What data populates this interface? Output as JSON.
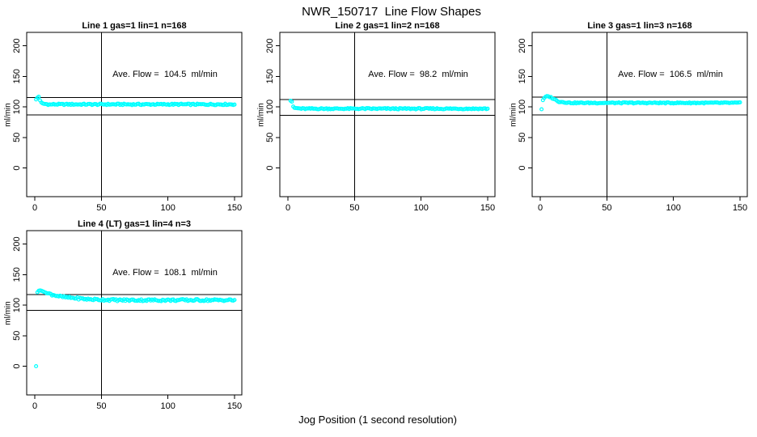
{
  "title": "NWR_150717  Line Flow Shapes",
  "xlabel": "Jog Position (1 second resolution)",
  "colors": {
    "point": "#00ffff",
    "axis": "#000000",
    "background": "#ffffff"
  },
  "chart_data": [
    {
      "type": "scatter",
      "title": "Line 1 gas=1 lin=1 n=168",
      "ylabel": "ml/min",
      "ave_flow": 104.5,
      "ave_flow_label": "Ave. Flow =  104.5  ml/min",
      "x_ticks": [
        0,
        50,
        100,
        150
      ],
      "y_ticks": [
        0,
        50,
        100,
        150,
        200
      ],
      "xlim": [
        0,
        155
      ],
      "vline_x": 50,
      "hlines": [
        115.5,
        86.5
      ],
      "head_points": [
        [
          1,
          112
        ],
        [
          2,
          115
        ],
        [
          3,
          116.5
        ],
        [
          4,
          110.5
        ],
        [
          5,
          107
        ]
      ],
      "segments": [
        {
          "from": 6,
          "to": 12,
          "v_from": 105,
          "v_to": 103.6,
          "step": 1
        },
        {
          "from": 13,
          "to": 150,
          "v_from": 104,
          "v_to": 104,
          "step": 1
        }
      ],
      "outliers": [],
      "noise": 1.1
    },
    {
      "type": "scatter",
      "title": "Line 2 gas=1 lin=2 n=168",
      "ylabel": "ml/min",
      "ave_flow": 98.2,
      "ave_flow_label": "Ave. Flow =  98.2  ml/min",
      "x_ticks": [
        0,
        50,
        100,
        150
      ],
      "y_ticks": [
        0,
        50,
        100,
        150,
        200
      ],
      "xlim": [
        0,
        155
      ],
      "vline_x": 50,
      "hlines": [
        112,
        86
      ],
      "head_points": [
        [
          2,
          110
        ],
        [
          3,
          108.5
        ],
        [
          4,
          100.5
        ]
      ],
      "segments": [
        {
          "from": 5,
          "to": 10,
          "v_from": 98.2,
          "v_to": 96.9,
          "step": 1
        },
        {
          "from": 11,
          "to": 150,
          "v_from": 96.9,
          "v_to": 96.9,
          "step": 1
        }
      ],
      "outliers": [],
      "noise": 1.0
    },
    {
      "type": "scatter",
      "title": "Line 3 gas=1 lin=3 n=168",
      "ylabel": "ml/min",
      "ave_flow": 106.5,
      "ave_flow_label": "Ave. Flow =  106.5  ml/min",
      "x_ticks": [
        0,
        50,
        100,
        150
      ],
      "y_ticks": [
        0,
        50,
        100,
        150,
        200
      ],
      "xlim": [
        0,
        155
      ],
      "vline_x": 50,
      "hlines": [
        116,
        87
      ],
      "head_points": [
        [
          2,
          111
        ],
        [
          3,
          114.5
        ],
        [
          4,
          116.5
        ],
        [
          5,
          117.5
        ],
        [
          6,
          117.2
        ]
      ],
      "segments": [
        {
          "from": 7,
          "to": 14,
          "v_from": 116.5,
          "v_to": 108.5,
          "step": 1
        },
        {
          "from": 15,
          "to": 22,
          "v_from": 108.2,
          "v_to": 106.6,
          "step": 1
        },
        {
          "from": 23,
          "to": 150,
          "v_from": 106.4,
          "v_to": 106.4,
          "step": 1
        }
      ],
      "outliers": [
        [
          1,
          96
        ]
      ],
      "noise": 0.9
    },
    {
      "type": "scatter",
      "title": "Line 4 (LT) gas=1 lin=4 n=3",
      "ylabel": "ml/min",
      "ave_flow": 108.1,
      "ave_flow_label": "Ave. Flow =  108.1  ml/min",
      "x_ticks": [
        0,
        50,
        100,
        150
      ],
      "y_ticks": [
        0,
        50,
        100,
        150,
        200
      ],
      "xlim": [
        0,
        155
      ],
      "vline_x": 50,
      "hlines": [
        117,
        91.5
      ],
      "head_points": [
        [
          2,
          121
        ],
        [
          3,
          123.5
        ],
        [
          4,
          124
        ],
        [
          5,
          123.5
        ],
        [
          6,
          122.5
        ],
        [
          7,
          121.5
        ],
        [
          8,
          120.5
        ]
      ],
      "segments": [
        {
          "from": 9,
          "to": 20,
          "v_from": 119.5,
          "v_to": 113.5,
          "step": 1
        },
        {
          "from": 21,
          "to": 40,
          "v_from": 113.2,
          "v_to": 109.5,
          "step": 1
        },
        {
          "from": 41,
          "to": 60,
          "v_from": 109.4,
          "v_to": 108.3,
          "step": 1
        },
        {
          "from": 61,
          "to": 150,
          "v_from": 108.1,
          "v_to": 108.1,
          "step": 1
        }
      ],
      "outliers": [
        [
          1,
          0
        ]
      ],
      "noise": 1.7
    }
  ]
}
